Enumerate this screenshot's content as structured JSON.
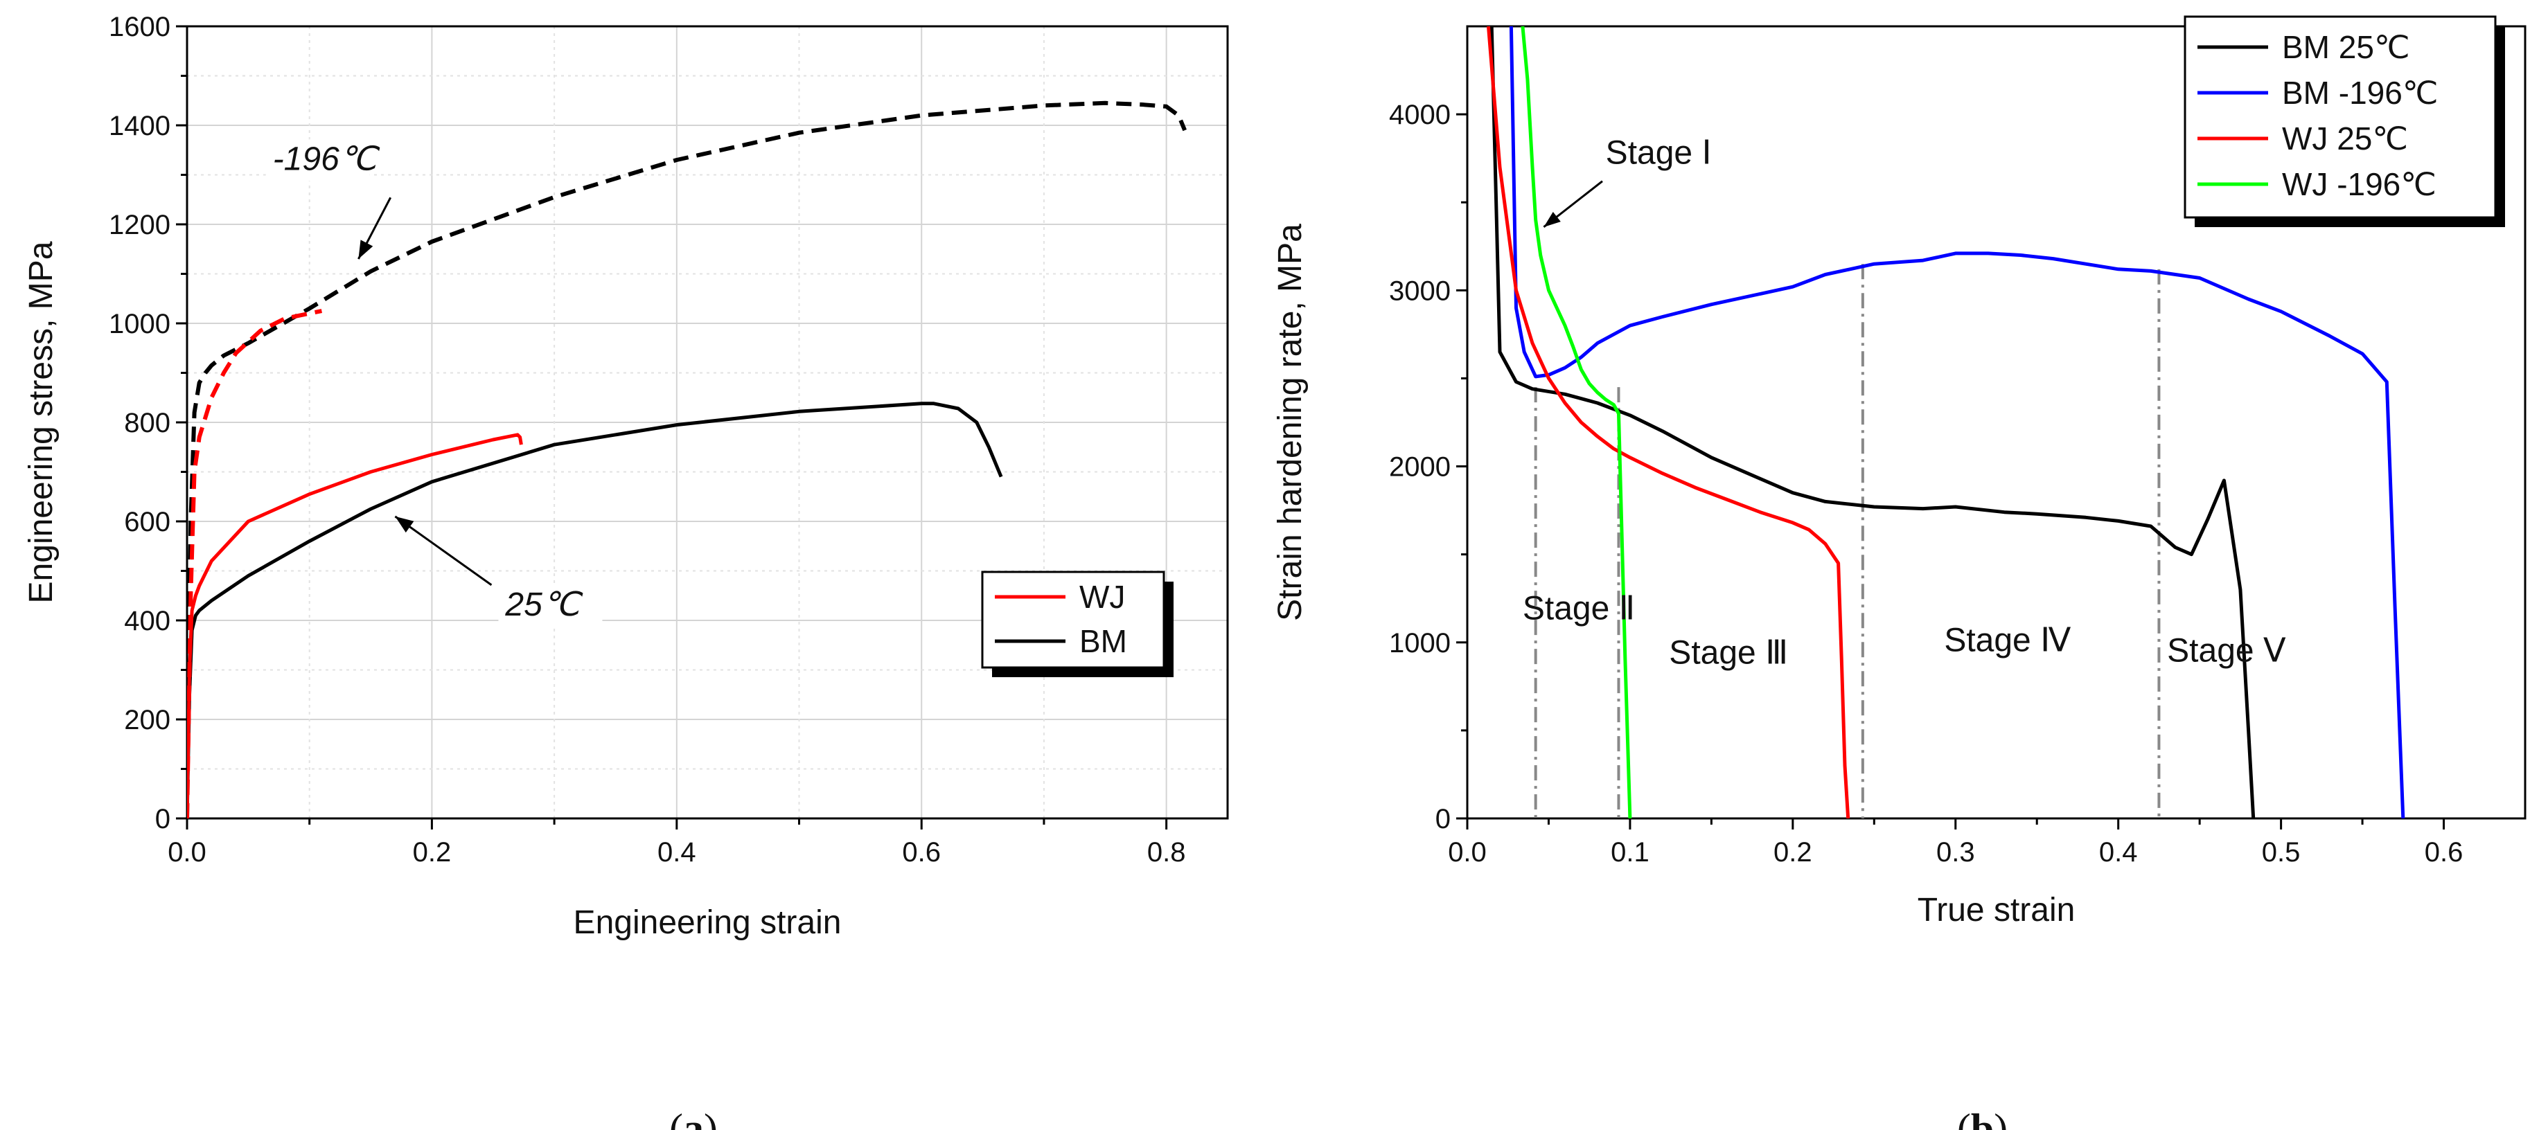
{
  "chart_data": [
    {
      "type": "line",
      "panel_label": "a",
      "xlabel": "Engineering strain",
      "ylabel": "Engineering stress, MPa",
      "xlim": [
        0,
        0.85
      ],
      "ylim": [
        0,
        1600
      ],
      "xticks": [
        0.0,
        0.2,
        0.4,
        0.6,
        0.8
      ],
      "xtick_labels": [
        "0.0",
        "0.2",
        "0.4",
        "0.6",
        "0.8"
      ],
      "yticks": [
        0,
        200,
        400,
        600,
        800,
        1000,
        1200,
        1400,
        1600
      ],
      "ytick_labels": [
        "0",
        "200",
        "400",
        "600",
        "800",
        "1000",
        "1200",
        "1400",
        "1600"
      ],
      "grid": true,
      "legend": {
        "position": "lower-right",
        "entries": [
          {
            "label": "WJ",
            "color": "#ff0000"
          },
          {
            "label": "BM",
            "color": "#000000"
          }
        ]
      },
      "annotations": [
        {
          "text": "-196℃",
          "at": [
            0.14,
            1130
          ],
          "text_pos": [
            0.07,
            1310
          ]
        },
        {
          "text": "25℃",
          "at": [
            0.17,
            610
          ],
          "text_pos": [
            0.26,
            410
          ]
        }
      ],
      "series": [
        {
          "name": "BM 25℃",
          "color": "#000000",
          "dash": false,
          "x": [
            0,
            0.002,
            0.004,
            0.007,
            0.01,
            0.02,
            0.05,
            0.1,
            0.15,
            0.2,
            0.3,
            0.4,
            0.5,
            0.55,
            0.6,
            0.61,
            0.63,
            0.645,
            0.655,
            0.665
          ],
          "y": [
            0,
            250,
            380,
            410,
            420,
            440,
            490,
            560,
            625,
            680,
            755,
            795,
            822,
            830,
            838,
            838,
            828,
            800,
            750,
            690
          ]
        },
        {
          "name": "WJ 25℃",
          "color": "#ff0000",
          "dash": false,
          "x": [
            0,
            0.002,
            0.004,
            0.007,
            0.01,
            0.02,
            0.05,
            0.1,
            0.15,
            0.2,
            0.25,
            0.27,
            0.272,
            0.273
          ],
          "y": [
            0,
            300,
            420,
            450,
            470,
            520,
            600,
            655,
            700,
            735,
            765,
            775,
            770,
            755
          ]
        },
        {
          "name": "BM -196℃",
          "color": "#000000",
          "dash": true,
          "x": [
            0,
            0.003,
            0.006,
            0.01,
            0.015,
            0.02,
            0.03,
            0.05,
            0.1,
            0.15,
            0.2,
            0.3,
            0.4,
            0.5,
            0.6,
            0.7,
            0.75,
            0.78,
            0.8,
            0.81,
            0.815
          ],
          "y": [
            0,
            600,
            820,
            880,
            900,
            915,
            935,
            960,
            1030,
            1105,
            1165,
            1255,
            1330,
            1385,
            1420,
            1440,
            1445,
            1442,
            1438,
            1420,
            1390
          ]
        },
        {
          "name": "WJ -196℃",
          "color": "#ff0000",
          "dash": true,
          "x": [
            0,
            0.003,
            0.006,
            0.01,
            0.02,
            0.03,
            0.04,
            0.06,
            0.08,
            0.1,
            0.11
          ],
          "y": [
            0,
            450,
            700,
            770,
            850,
            900,
            940,
            985,
            1010,
            1020,
            1025
          ]
        }
      ]
    },
    {
      "type": "line",
      "panel_label": "b",
      "xlabel": "True strain",
      "ylabel": "Strain hardening rate, MPa",
      "xlim": [
        0,
        0.65
      ],
      "ylim": [
        0,
        4500
      ],
      "xticks": [
        0.0,
        0.1,
        0.2,
        0.3,
        0.4,
        0.5,
        0.6
      ],
      "xtick_labels": [
        "0.0",
        "0.1",
        "0.2",
        "0.3",
        "0.4",
        "0.5",
        "0.6"
      ],
      "yticks": [
        0,
        1000,
        2000,
        3000,
        4000
      ],
      "ytick_labels": [
        "0",
        "1000",
        "2000",
        "3000",
        "4000"
      ],
      "grid": false,
      "legend": {
        "position": "top-right",
        "entries": [
          {
            "label": "BM 25℃",
            "color": "#000000"
          },
          {
            "label": "BM -196℃",
            "color": "#0000ff"
          },
          {
            "label": "WJ 25℃",
            "color": "#ff0000"
          },
          {
            "label": "WJ -196℃",
            "color": "#00ff00"
          }
        ]
      },
      "stage_lines": [
        0.042,
        0.093,
        0.243,
        0.425
      ],
      "stages": [
        {
          "label": "Stage Ⅰ",
          "x": 0.085,
          "y": 3720
        },
        {
          "label": "Stage Ⅱ",
          "x": 0.034,
          "y": 1130
        },
        {
          "label": "Stage Ⅲ",
          "x": 0.124,
          "y": 880
        },
        {
          "label": "Stage Ⅳ",
          "x": 0.293,
          "y": 950
        },
        {
          "label": "Stage Ⅴ",
          "x": 0.43,
          "y": 890
        }
      ],
      "stage1_arrow": {
        "from": [
          0.083,
          3620
        ],
        "to": [
          0.047,
          3360
        ]
      },
      "series": [
        {
          "name": "BM 25℃",
          "color": "#000000",
          "x": [
            0.015,
            0.018,
            0.02,
            0.03,
            0.04,
            0.06,
            0.08,
            0.1,
            0.12,
            0.15,
            0.18,
            0.2,
            0.22,
            0.25,
            0.28,
            0.3,
            0.33,
            0.35,
            0.38,
            0.4,
            0.42,
            0.435,
            0.445,
            0.455,
            0.465,
            0.475,
            0.48,
            0.483
          ],
          "y": [
            4500,
            3400,
            2650,
            2480,
            2440,
            2410,
            2360,
            2290,
            2200,
            2050,
            1930,
            1850,
            1800,
            1770,
            1760,
            1770,
            1740,
            1730,
            1710,
            1690,
            1660,
            1540,
            1500,
            1700,
            1920,
            1300,
            500,
            0
          ]
        },
        {
          "name": "BM -196℃",
          "color": "#0000ff",
          "x": [
            0.027,
            0.03,
            0.035,
            0.042,
            0.05,
            0.06,
            0.07,
            0.08,
            0.1,
            0.12,
            0.15,
            0.18,
            0.2,
            0.22,
            0.25,
            0.28,
            0.3,
            0.32,
            0.34,
            0.36,
            0.38,
            0.4,
            0.42,
            0.45,
            0.48,
            0.5,
            0.53,
            0.55,
            0.565,
            0.57,
            0.575
          ],
          "y": [
            4500,
            2900,
            2650,
            2510,
            2520,
            2560,
            2620,
            2700,
            2800,
            2850,
            2920,
            2980,
            3020,
            3090,
            3150,
            3170,
            3210,
            3210,
            3200,
            3180,
            3150,
            3120,
            3110,
            3070,
            2950,
            2880,
            2740,
            2640,
            2480,
            1200,
            0
          ]
        },
        {
          "name": "WJ 25℃",
          "color": "#ff0000",
          "x": [
            0.013,
            0.02,
            0.03,
            0.04,
            0.05,
            0.06,
            0.07,
            0.08,
            0.09,
            0.1,
            0.12,
            0.14,
            0.16,
            0.18,
            0.2,
            0.21,
            0.22,
            0.228,
            0.23,
            0.232,
            0.234
          ],
          "y": [
            4500,
            3700,
            3000,
            2700,
            2500,
            2360,
            2250,
            2170,
            2100,
            2050,
            1960,
            1880,
            1810,
            1740,
            1680,
            1640,
            1560,
            1450,
            900,
            300,
            0
          ]
        },
        {
          "name": "WJ -196℃",
          "color": "#00ff00",
          "x": [
            0.034,
            0.037,
            0.04,
            0.042,
            0.045,
            0.05,
            0.06,
            0.065,
            0.07,
            0.075,
            0.08,
            0.085,
            0.09,
            0.093,
            0.095,
            0.097,
            0.099,
            0.1
          ],
          "y": [
            4500,
            4200,
            3700,
            3400,
            3200,
            3000,
            2800,
            2680,
            2550,
            2470,
            2420,
            2380,
            2350,
            2300,
            1600,
            900,
            300,
            0
          ]
        }
      ]
    }
  ]
}
